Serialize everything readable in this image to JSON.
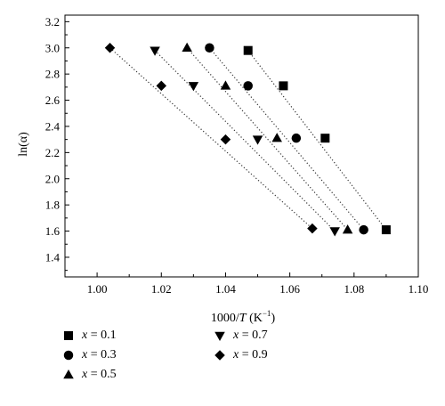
{
  "chart_data": {
    "type": "scatter",
    "xlabel_prefix": "1000/",
    "xlabel_var": "T",
    "xlabel_suffix": " (K",
    "xlabel_sup": "−1",
    "xlabel_close": ")",
    "ylabel": "ln(α)",
    "xlim": [
      0.99,
      1.1
    ],
    "ylim": [
      1.25,
      3.25
    ],
    "xticks": [
      "1.00",
      "1.02",
      "1.04",
      "1.06",
      "1.08",
      "1.10"
    ],
    "yticks": [
      "1.4",
      "1.6",
      "1.8",
      "2.0",
      "2.2",
      "2.4",
      "2.6",
      "2.8",
      "3.0",
      "3.2"
    ],
    "fit_lines": "dotted",
    "series": [
      {
        "name": "x = 0.1",
        "marker": "square",
        "points": [
          [
            1.047,
            2.98
          ],
          [
            1.058,
            2.71
          ],
          [
            1.071,
            2.31
          ],
          [
            1.09,
            1.61
          ]
        ]
      },
      {
        "name": "x = 0.3",
        "marker": "circle",
        "points": [
          [
            1.035,
            3.0
          ],
          [
            1.047,
            2.71
          ],
          [
            1.062,
            2.31
          ],
          [
            1.083,
            1.61
          ]
        ]
      },
      {
        "name": "x = 0.5",
        "marker": "triangle-up",
        "points": [
          [
            1.028,
            3.0
          ],
          [
            1.04,
            2.71
          ],
          [
            1.056,
            2.31
          ],
          [
            1.078,
            1.61
          ]
        ]
      },
      {
        "name": "x = 0.7",
        "marker": "triangle-down",
        "points": [
          [
            1.018,
            2.98
          ],
          [
            1.03,
            2.71
          ],
          [
            1.05,
            2.3
          ],
          [
            1.074,
            1.6
          ]
        ]
      },
      {
        "name": "x = 0.9",
        "marker": "diamond",
        "points": [
          [
            1.004,
            3.0
          ],
          [
            1.02,
            2.71
          ],
          [
            1.04,
            2.3
          ],
          [
            1.067,
            1.62
          ]
        ]
      }
    ]
  },
  "legend": [
    {
      "var": "x",
      "rest": " = 0.1",
      "marker": "square"
    },
    {
      "var": "x",
      "rest": " = 0.3",
      "marker": "circle"
    },
    {
      "var": "x",
      "rest": " = 0.5",
      "marker": "triangle-up"
    },
    {
      "var": "x",
      "rest": " = 0.7",
      "marker": "triangle-down"
    },
    {
      "var": "x",
      "rest": " = 0.9",
      "marker": "diamond"
    }
  ]
}
